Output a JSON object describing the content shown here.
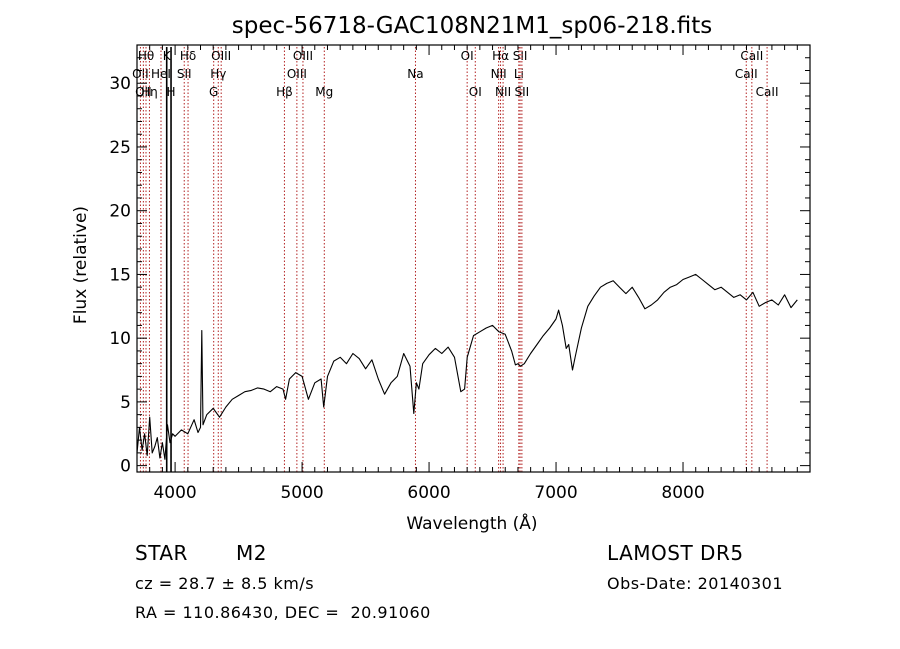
{
  "chart_data": {
    "type": "line",
    "title": "spec-56718-GAC108N21M1_sp06-218.fits",
    "xlabel": "Wavelength (Å)",
    "ylabel": "Flux (relative)",
    "xlim": [
      3700,
      9000
    ],
    "ylim": [
      -0.5,
      33
    ],
    "x_ticks": [
      4000,
      5000,
      6000,
      7000,
      8000
    ],
    "y_ticks": [
      0,
      5,
      10,
      15,
      20,
      25,
      30
    ],
    "grid": false,
    "line_color": "#000000",
    "marker_color": "#b22222",
    "series": [
      {
        "x": [
          3700,
          3720,
          3740,
          3760,
          3780,
          3800,
          3820,
          3840,
          3860,
          3880,
          3900,
          3920,
          3940,
          3960,
          3980,
          4000,
          4050,
          4100,
          4150,
          4180,
          4200,
          4210,
          4220,
          4250,
          4300,
          4350,
          4400,
          4450,
          4500,
          4550,
          4600,
          4650,
          4700,
          4750,
          4800,
          4850,
          4870,
          4900,
          4950,
          5000,
          5050,
          5100,
          5150,
          5170,
          5200,
          5250,
          5300,
          5350,
          5400,
          5450,
          5500,
          5550,
          5600,
          5650,
          5700,
          5750,
          5800,
          5850,
          5880,
          5900,
          5920,
          5950,
          6000,
          6050,
          6100,
          6150,
          6200,
          6250,
          6280,
          6300,
          6350,
          6400,
          6450,
          6500,
          6550,
          6600,
          6650,
          6680,
          6700,
          6720,
          6750,
          6800,
          6850,
          6900,
          6950,
          7000,
          7020,
          7050,
          7080,
          7100,
          7130,
          7150,
          7200,
          7250,
          7300,
          7350,
          7400,
          7450,
          7500,
          7550,
          7600,
          7650,
          7700,
          7750,
          7800,
          7850,
          7900,
          7950,
          8000,
          8050,
          8100,
          8150,
          8200,
          8250,
          8300,
          8350,
          8400,
          8450,
          8500,
          8550,
          8600,
          8650,
          8700,
          8750,
          8800,
          8850,
          8900
        ],
        "y": [
          1.0,
          3.0,
          1.2,
          2.5,
          0.8,
          3.8,
          1.0,
          1.5,
          2.2,
          0.6,
          1.8,
          0.5,
          3.2,
          1.8,
          2.5,
          2.3,
          2.8,
          2.5,
          3.6,
          2.6,
          3.0,
          10.6,
          3.2,
          4.0,
          4.5,
          3.8,
          4.6,
          5.2,
          5.5,
          5.8,
          5.9,
          6.1,
          6.0,
          5.8,
          6.2,
          6.0,
          5.2,
          6.8,
          7.3,
          7.0,
          5.2,
          6.5,
          6.8,
          4.6,
          7.0,
          8.2,
          8.5,
          8.0,
          8.8,
          8.4,
          7.6,
          8.3,
          6.8,
          5.6,
          6.5,
          7.0,
          8.8,
          7.8,
          4.1,
          6.5,
          6.0,
          8.0,
          8.7,
          9.2,
          8.8,
          9.3,
          8.5,
          5.8,
          6.0,
          8.5,
          10.2,
          10.5,
          10.8,
          11.0,
          10.5,
          10.3,
          9.0,
          7.9,
          8.0,
          7.8,
          8.0,
          8.8,
          9.5,
          10.2,
          10.8,
          11.5,
          12.2,
          11.0,
          9.2,
          9.5,
          7.5,
          8.5,
          10.8,
          12.5,
          13.3,
          14.0,
          14.3,
          14.5,
          14.0,
          13.5,
          14.0,
          13.2,
          12.3,
          12.6,
          13.0,
          13.6,
          14.0,
          14.2,
          14.6,
          14.8,
          15.0,
          14.6,
          14.2,
          13.8,
          14.0,
          13.6,
          13.2,
          13.4,
          13.0,
          13.6,
          12.5,
          12.8,
          13.0,
          12.6,
          13.4,
          12.4,
          13.0
        ]
      }
    ],
    "line_markers": [
      {
        "x": 3727,
        "label": "OII",
        "row": 1
      },
      {
        "x": 3750,
        "label": "OII",
        "row": 2
      },
      {
        "x": 3771,
        "label": "Hθ",
        "row": 0
      },
      {
        "x": 3798,
        "label": "Hη",
        "row": 2
      },
      {
        "x": 3889,
        "label": "HeI",
        "row": 1
      },
      {
        "x": 3934,
        "label": "K",
        "row": 0
      },
      {
        "x": 3968,
        "label": "H",
        "row": 2
      },
      {
        "x": 4072,
        "label": "SII",
        "row": 1
      },
      {
        "x": 4102,
        "label": "Hδ",
        "row": 0
      },
      {
        "x": 4304,
        "label": "G",
        "row": 2
      },
      {
        "x": 4340,
        "label": "Hγ",
        "row": 1
      },
      {
        "x": 4363,
        "label": "OIII",
        "row": 0
      },
      {
        "x": 4861,
        "label": "Hβ",
        "row": 2
      },
      {
        "x": 4959,
        "label": "OIII",
        "row": 1
      },
      {
        "x": 5007,
        "label": "OIII",
        "row": 0
      },
      {
        "x": 5175,
        "label": "Mg",
        "row": 2
      },
      {
        "x": 5893,
        "label": "Na",
        "row": 1
      },
      {
        "x": 6300,
        "label": "OI",
        "row": 0
      },
      {
        "x": 6364,
        "label": "OI",
        "row": 2
      },
      {
        "x": 6548,
        "label": "NII",
        "row": 1
      },
      {
        "x": 6563,
        "label": "Hα",
        "row": 0
      },
      {
        "x": 6583,
        "label": "NII",
        "row": 2
      },
      {
        "x": 6707,
        "label": "Li",
        "row": 1
      },
      {
        "x": 6717,
        "label": "SII",
        "row": 0
      },
      {
        "x": 6731,
        "label": "SII",
        "row": 2
      },
      {
        "x": 8498,
        "label": "CaII",
        "row": 1
      },
      {
        "x": 8542,
        "label": "CaII",
        "row": 0
      },
      {
        "x": 8662,
        "label": "CaII",
        "row": 2
      }
    ],
    "absorption_lines": [
      3934,
      3968
    ]
  },
  "info": {
    "object_class": "STAR",
    "subclass": "M2",
    "redshift": "cz = 28.7 ± 8.5 km/s",
    "coords": "RA = 110.86430, DEC =  20.91060",
    "survey": "LAMOST DR5",
    "obs_date": "Obs-Date: 20140301"
  }
}
